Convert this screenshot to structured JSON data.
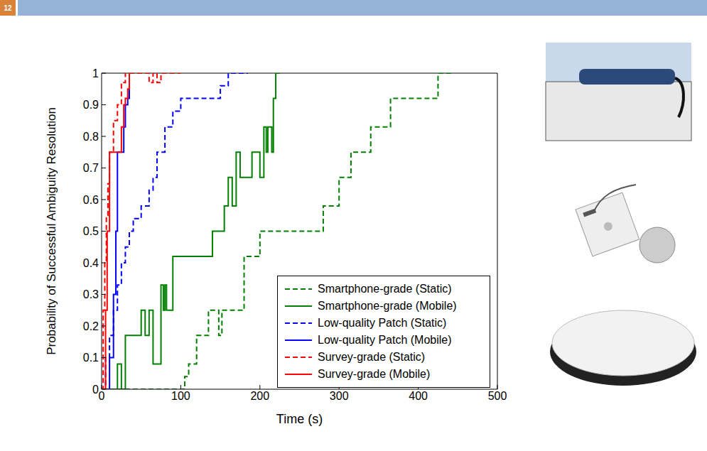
{
  "slide_number": "12",
  "chart_data": {
    "type": "line",
    "xlabel": "Time (s)",
    "ylabel": "Probability of Successful Ambiguity Resolution",
    "xlim": [
      0,
      500
    ],
    "xticks": [
      0,
      100,
      200,
      300,
      400,
      500
    ],
    "ylim": [
      0,
      1
    ],
    "yticks": [
      0,
      0.1,
      0.2,
      0.3,
      0.4,
      0.5,
      0.6,
      0.7,
      0.8,
      0.9,
      1
    ],
    "grid": false,
    "legend": "lower right",
    "series": [
      {
        "name": "Smartphone-grade (Static)",
        "color": "#008000",
        "line_style": "dashed",
        "x": [
          0,
          105,
          110,
          120,
          135,
          148,
          152,
          180,
          200,
          280,
          300,
          315,
          340,
          365,
          425,
          445
        ],
        "values": [
          0,
          0.04,
          0.08,
          0.17,
          0.25,
          0.17,
          0.25,
          0.42,
          0.5,
          0.58,
          0.67,
          0.75,
          0.83,
          0.92,
          1,
          1
        ]
      },
      {
        "name": "Smartphone-grade (Mobile)",
        "color": "#008000",
        "line_style": "solid",
        "x": [
          0,
          20,
          25,
          30,
          50,
          55,
          60,
          65,
          75,
          78,
          80,
          82,
          90,
          140,
          155,
          160,
          165,
          170,
          175,
          190,
          200,
          205,
          208,
          210,
          215,
          217,
          220,
          225
        ],
        "values": [
          0,
          0.08,
          0,
          0.17,
          0.25,
          0.17,
          0.25,
          0.08,
          0.33,
          0.25,
          0.33,
          0.25,
          0.42,
          0.5,
          0.58,
          0.67,
          0.58,
          0.75,
          0.67,
          0.75,
          0.67,
          0.83,
          0.75,
          0.83,
          0.75,
          0.92,
          1,
          1
        ]
      },
      {
        "name": "Low-quality Patch (Static)",
        "color": "#0000ff",
        "line_style": "dashed",
        "x": [
          0,
          2,
          5,
          10,
          15,
          20,
          25,
          30,
          35,
          40,
          50,
          60,
          65,
          70,
          80,
          90,
          100,
          140,
          150,
          160,
          185
        ],
        "values": [
          0,
          0,
          0.1,
          0.17,
          0.25,
          0.33,
          0.4,
          0.45,
          0.5,
          0.54,
          0.58,
          0.63,
          0.67,
          0.75,
          0.83,
          0.88,
          0.92,
          0.92,
          0.96,
          1,
          1
        ]
      },
      {
        "name": "Low-quality Patch (Mobile)",
        "color": "#0000ff",
        "line_style": "solid",
        "x": [
          0,
          5,
          10,
          15,
          18,
          20,
          25,
          28,
          30,
          33,
          35,
          40
        ],
        "values": [
          0,
          0,
          0.1,
          0.3,
          0.5,
          0.75,
          0.75,
          0.83,
          0.9,
          0.92,
          1,
          1
        ]
      },
      {
        "name": "Survey-grade (Static)",
        "color": "#ff0000",
        "line_style": "dashed",
        "x": [
          0,
          2,
          4,
          6,
          8,
          10,
          15,
          20,
          25,
          30,
          40,
          50,
          60,
          65,
          70,
          75,
          80,
          100
        ],
        "values": [
          0,
          0.25,
          0.4,
          0.55,
          0.65,
          0.75,
          0.85,
          0.9,
          0.97,
          1,
          1,
          1,
          0.97,
          1,
          0.97,
          1,
          1,
          1
        ]
      },
      {
        "name": "Survey-grade (Mobile)",
        "color": "#ff0000",
        "line_style": "solid",
        "x": [
          0,
          3,
          5,
          7,
          10,
          20,
          25,
          28,
          30,
          33,
          35,
          40
        ],
        "values": [
          0,
          0,
          0.25,
          0.5,
          0.75,
          0.75,
          0.83,
          0.9,
          0.92,
          0.95,
          1,
          1
        ]
      }
    ]
  }
}
